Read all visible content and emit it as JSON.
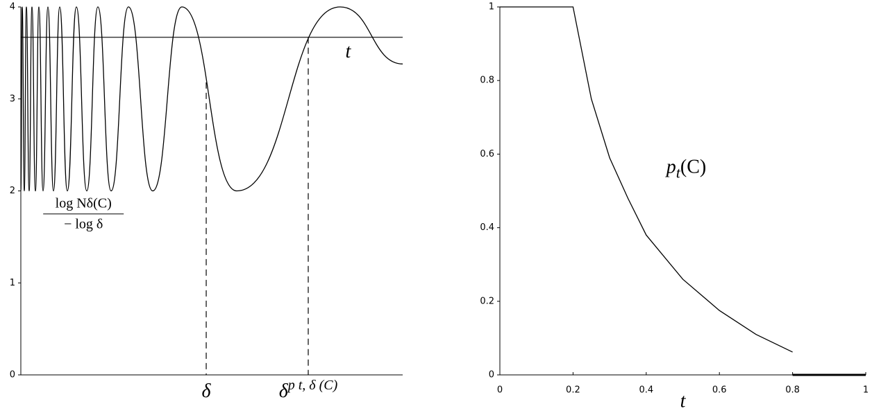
{
  "chart_data": [
    {
      "type": "line",
      "xlim": [
        0,
        1
      ],
      "ylim": [
        0,
        4
      ],
      "yticks": [
        0,
        1,
        2,
        3,
        4
      ],
      "x": [
        0,
        0.0036,
        0.0091,
        0.0145,
        0.0218,
        0.0291,
        0.0382,
        0.0473,
        0.0582,
        0.0709,
        0.0855,
        0.1018,
        0.1218,
        0.1455,
        0.1727,
        0.2018,
        0.2364,
        0.2818,
        0.3455,
        0.4218,
        0.5655,
        0.8364,
        1
      ],
      "series": [
        {
          "color": "#000000",
          "values": [
            2,
            4,
            2,
            4,
            2,
            4,
            2,
            4,
            2,
            4,
            2,
            4,
            2,
            4,
            2,
            4,
            2,
            4,
            2,
            4,
            2,
            4,
            3.38
          ]
        }
      ],
      "hline": {
        "value": 3.67,
        "label": "t",
        "label_x": 0.85,
        "label_y": 3.5
      },
      "markers": [
        {
          "x": 0.4855,
          "y": 3.18,
          "label": "δ"
        },
        {
          "x": 0.7527,
          "y": 3.67,
          "label": "δ",
          "sup": "p t, δ (C)"
        }
      ],
      "fraction": {
        "numerator": "log Nδ(C)",
        "denominator": "− log δ",
        "x": 0.164,
        "y": 1.75
      }
    },
    {
      "type": "line",
      "xlim": [
        0,
        1
      ],
      "ylim": [
        0,
        1
      ],
      "xticks": [
        0,
        0.2,
        0.4,
        0.6,
        0.8,
        1
      ],
      "yticks": [
        0,
        0.2,
        0.4,
        0.6,
        0.8,
        1
      ],
      "xlabel": "t",
      "series": [
        {
          "color": "#000000",
          "x": [
            0,
            0.2,
            0.25,
            0.3,
            0.35,
            0.4,
            0.5,
            0.6,
            0.7,
            0.8
          ],
          "values": [
            1,
            1,
            0.75,
            0.59,
            0.48,
            0.38,
            0.26,
            0.175,
            0.11,
            0.062
          ]
        },
        {
          "color": "#000000",
          "x": [
            0.8,
            1
          ],
          "values": [
            0,
            0
          ]
        }
      ],
      "annotation": {
        "parts": [
          "p",
          "t",
          "(C)"
        ],
        "x": 0.455,
        "y": 0.56
      }
    }
  ]
}
